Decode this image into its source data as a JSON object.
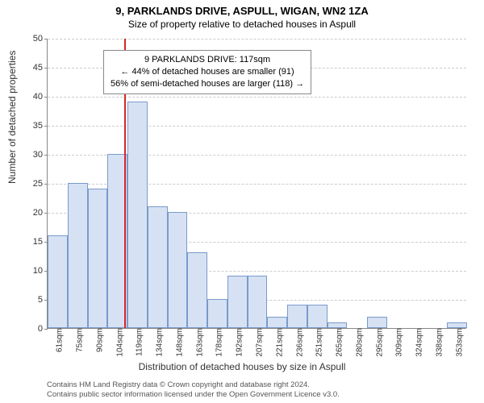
{
  "title": "9, PARKLANDS DRIVE, ASPULL, WIGAN, WN2 1ZA",
  "subtitle": "Size of property relative to detached houses in Aspull",
  "ylabel": "Number of detached properties",
  "xlabel": "Distribution of detached houses by size in Aspull",
  "chart": {
    "type": "histogram",
    "ylim": [
      0,
      50
    ],
    "ytick_step": 5,
    "bar_fill": "#d6e2f3",
    "bar_stroke": "#7a9acc",
    "grid_color": "#cccccc",
    "axis_color": "#888888",
    "background": "#ffffff",
    "marker_color": "#d62728",
    "marker_x": 117,
    "x_start": 61,
    "x_step": 14.6,
    "categories": [
      "61sqm",
      "75sqm",
      "90sqm",
      "104sqm",
      "119sqm",
      "134sqm",
      "148sqm",
      "163sqm",
      "178sqm",
      "192sqm",
      "207sqm",
      "221sqm",
      "236sqm",
      "251sqm",
      "265sqm",
      "280sqm",
      "295sqm",
      "309sqm",
      "324sqm",
      "338sqm",
      "353sqm"
    ],
    "values": [
      16,
      25,
      24,
      30,
      39,
      21,
      20,
      13,
      5,
      9,
      9,
      2,
      4,
      4,
      1,
      0,
      2,
      0,
      0,
      0,
      1
    ]
  },
  "annotation": {
    "line1": "9 PARKLANDS DRIVE: 117sqm",
    "line2": "← 44% of detached houses are smaller (91)",
    "line3": "56% of semi-detached houses are larger (118) →"
  },
  "footer": {
    "line1": "Contains HM Land Registry data © Crown copyright and database right 2024.",
    "line2": "Contains public sector information licensed under the Open Government Licence v3.0."
  }
}
